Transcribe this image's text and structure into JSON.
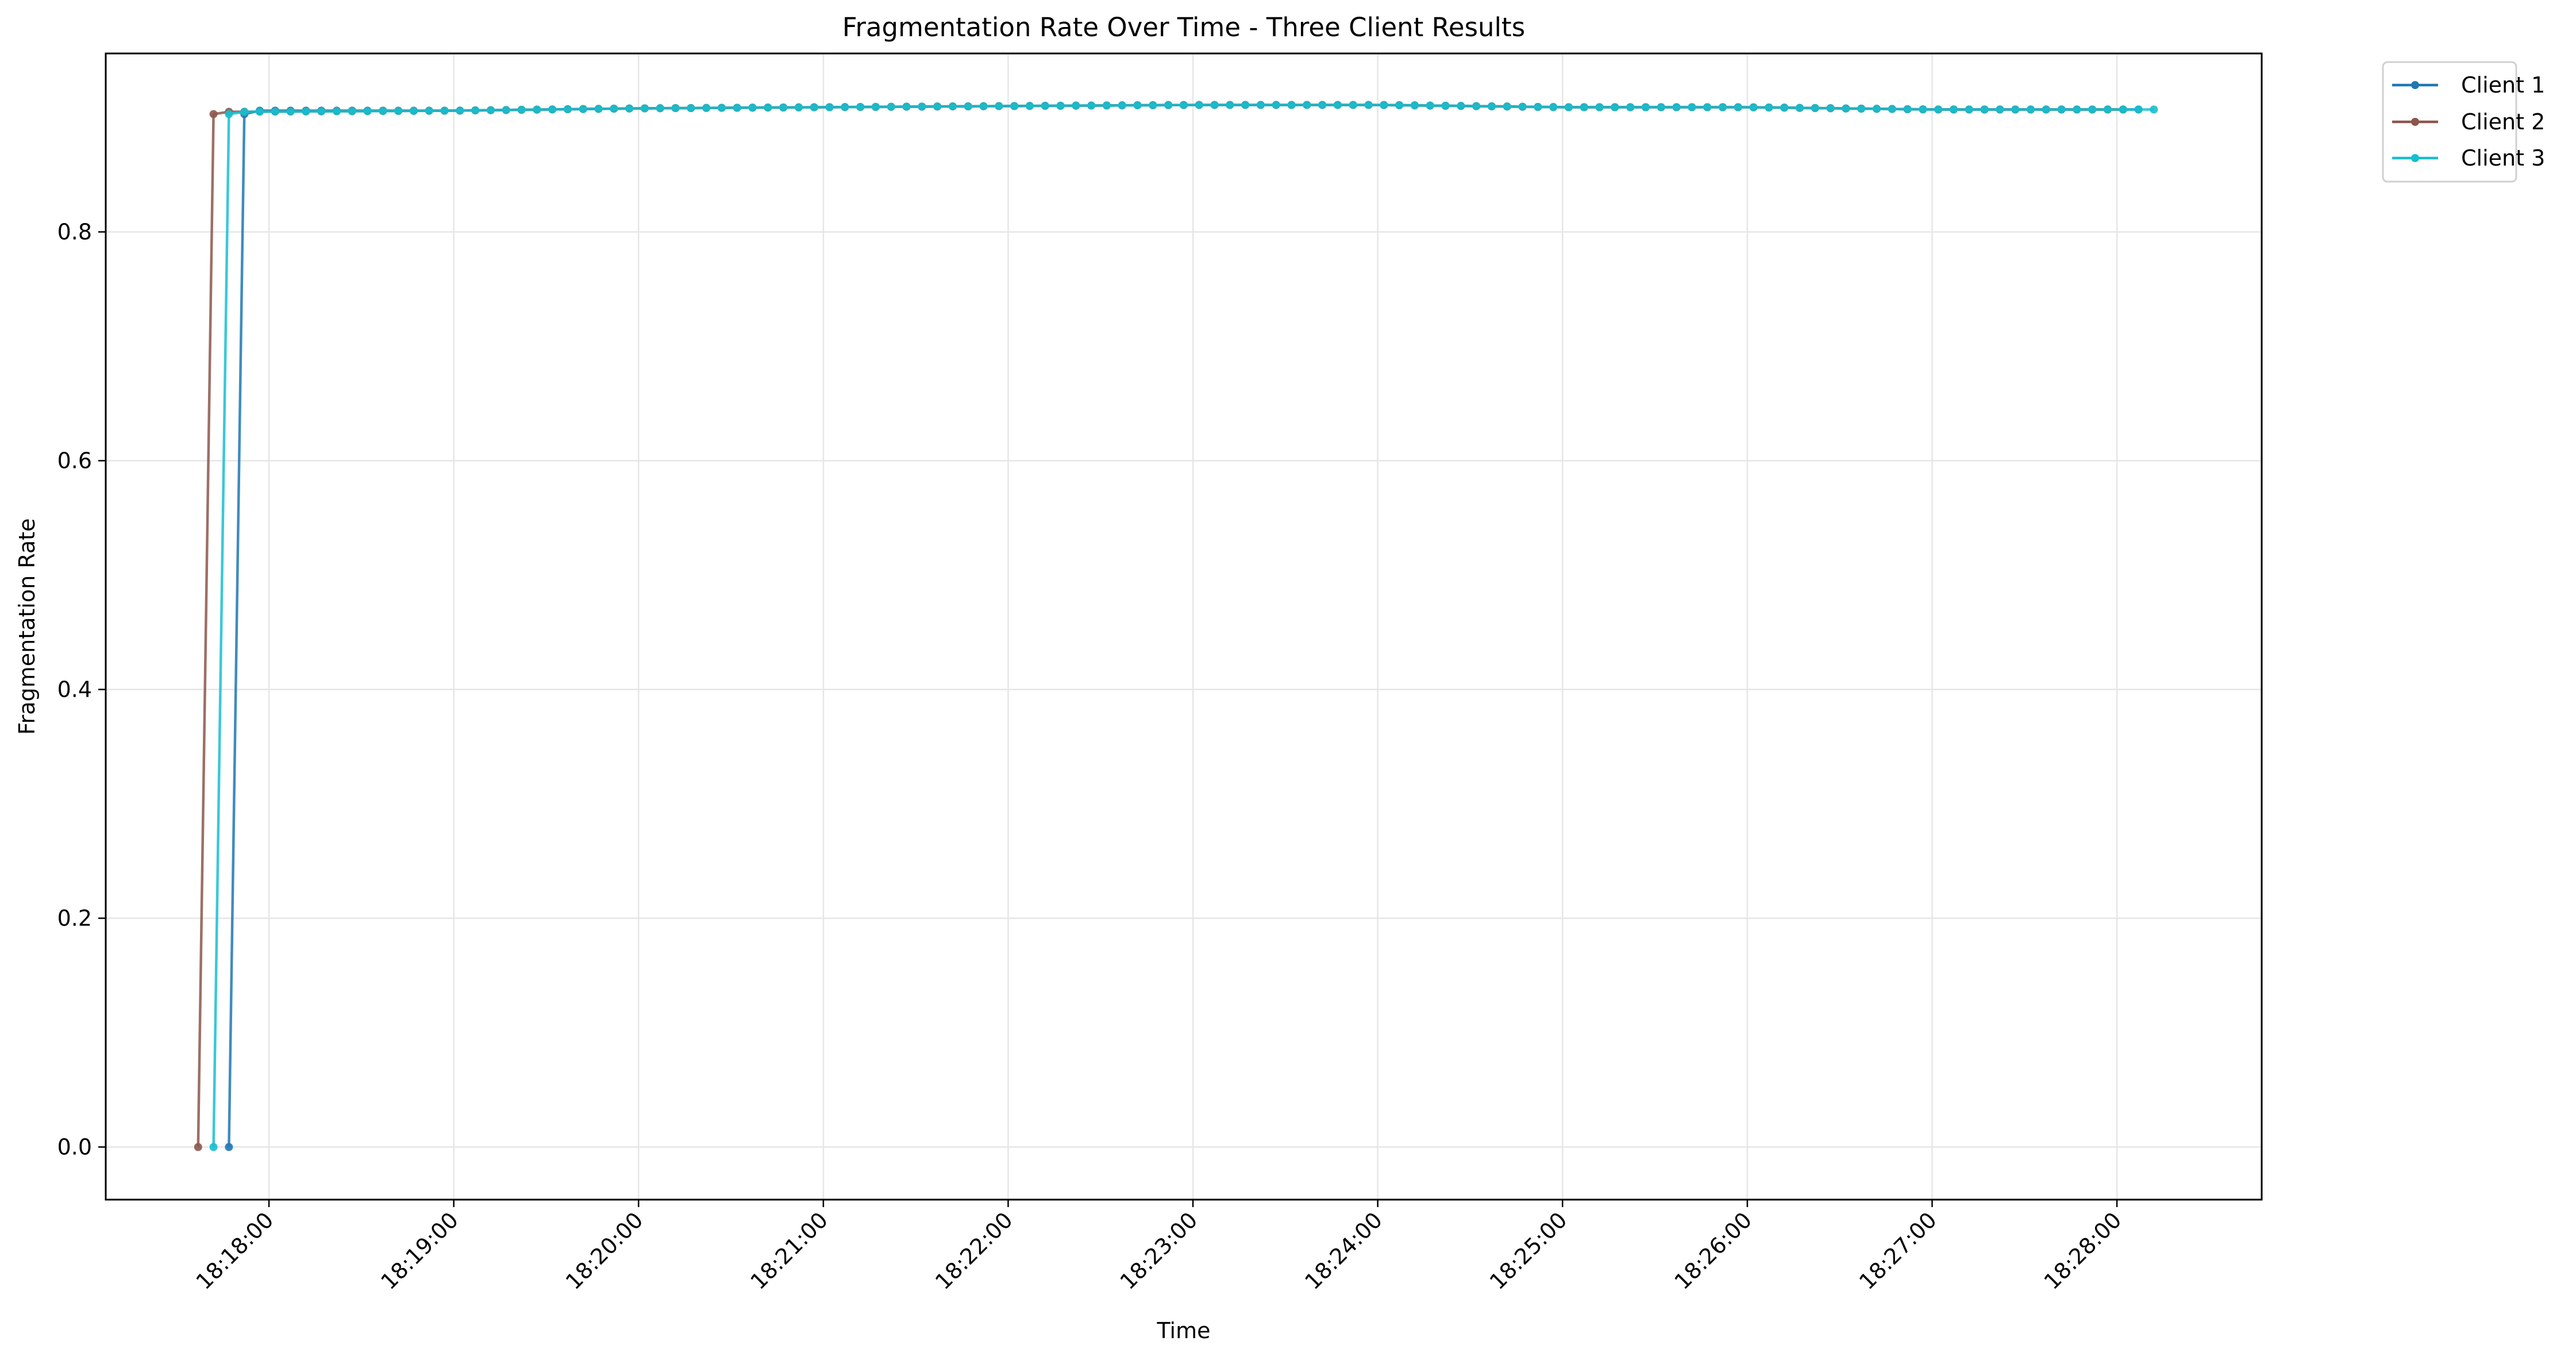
{
  "chart_data": {
    "type": "line",
    "title": "Fragmentation Rate Over Time - Three Client Results",
    "xlabel": "Time",
    "ylabel": "Fragmentation Rate",
    "xlim": [
      "18:17:07",
      "18:28:47"
    ],
    "ylim": [
      -0.046,
      0.956
    ],
    "x_ticks": [
      "18:18:00",
      "18:19:00",
      "18:20:00",
      "18:21:00",
      "18:22:00",
      "18:23:00",
      "18:24:00",
      "18:25:00",
      "18:26:00",
      "18:27:00",
      "18:28:00"
    ],
    "y_ticks": [
      "0.0",
      "0.2",
      "0.4",
      "0.6",
      "0.8"
    ],
    "x_tick_rotation_deg": 45,
    "grid": true,
    "legend": {
      "placement": "outside-top-right"
    },
    "series": [
      {
        "name": "Client 1",
        "color": "#1f77b4",
        "marker": "circle",
        "start": "18:17:47",
        "end": "18:28:11",
        "sample_interval_s": 5,
        "profile": [
          {
            "time": "18:17:47",
            "value": 0.0
          },
          {
            "time": "18:17:52",
            "value": 0.903
          },
          {
            "time": "18:17:57",
            "value": 0.906
          },
          {
            "time": "18:19:00",
            "value": 0.906
          },
          {
            "time": "18:20:00",
            "value": 0.908
          },
          {
            "time": "18:21:00",
            "value": 0.909
          },
          {
            "time": "18:22:00",
            "value": 0.91
          },
          {
            "time": "18:23:00",
            "value": 0.911
          },
          {
            "time": "18:24:00",
            "value": 0.911
          },
          {
            "time": "18:25:00",
            "value": 0.909
          },
          {
            "time": "18:26:00",
            "value": 0.909
          },
          {
            "time": "18:27:00",
            "value": 0.907
          },
          {
            "time": "18:28:11",
            "value": 0.907
          }
        ]
      },
      {
        "name": "Client 2",
        "color": "#8c564b",
        "marker": "circle",
        "start": "18:17:37",
        "end": "18:28:06",
        "sample_interval_s": 5,
        "profile": [
          {
            "time": "18:17:37",
            "value": 0.0
          },
          {
            "time": "18:17:42",
            "value": 0.903
          },
          {
            "time": "18:17:47",
            "value": 0.905
          },
          {
            "time": "18:19:00",
            "value": 0.906
          },
          {
            "time": "18:20:00",
            "value": 0.908
          },
          {
            "time": "18:21:00",
            "value": 0.909
          },
          {
            "time": "18:22:00",
            "value": 0.91
          },
          {
            "time": "18:23:00",
            "value": 0.911
          },
          {
            "time": "18:24:00",
            "value": 0.911
          },
          {
            "time": "18:25:00",
            "value": 0.909
          },
          {
            "time": "18:26:00",
            "value": 0.909
          },
          {
            "time": "18:27:00",
            "value": 0.907
          },
          {
            "time": "18:28:06",
            "value": 0.907
          }
        ]
      },
      {
        "name": "Client 3",
        "color": "#17becf",
        "marker": "circle",
        "start": "18:17:42",
        "end": "18:28:16",
        "sample_interval_s": 5,
        "profile": [
          {
            "time": "18:17:42",
            "value": 0.0
          },
          {
            "time": "18:17:47",
            "value": 0.903
          },
          {
            "time": "18:17:52",
            "value": 0.905
          },
          {
            "time": "18:19:00",
            "value": 0.906
          },
          {
            "time": "18:20:00",
            "value": 0.908
          },
          {
            "time": "18:21:00",
            "value": 0.909
          },
          {
            "time": "18:22:00",
            "value": 0.91
          },
          {
            "time": "18:23:00",
            "value": 0.911
          },
          {
            "time": "18:24:00",
            "value": 0.911
          },
          {
            "time": "18:25:00",
            "value": 0.909
          },
          {
            "time": "18:26:00",
            "value": 0.909
          },
          {
            "time": "18:27:00",
            "value": 0.907
          },
          {
            "time": "18:28:16",
            "value": 0.907
          }
        ]
      }
    ]
  }
}
